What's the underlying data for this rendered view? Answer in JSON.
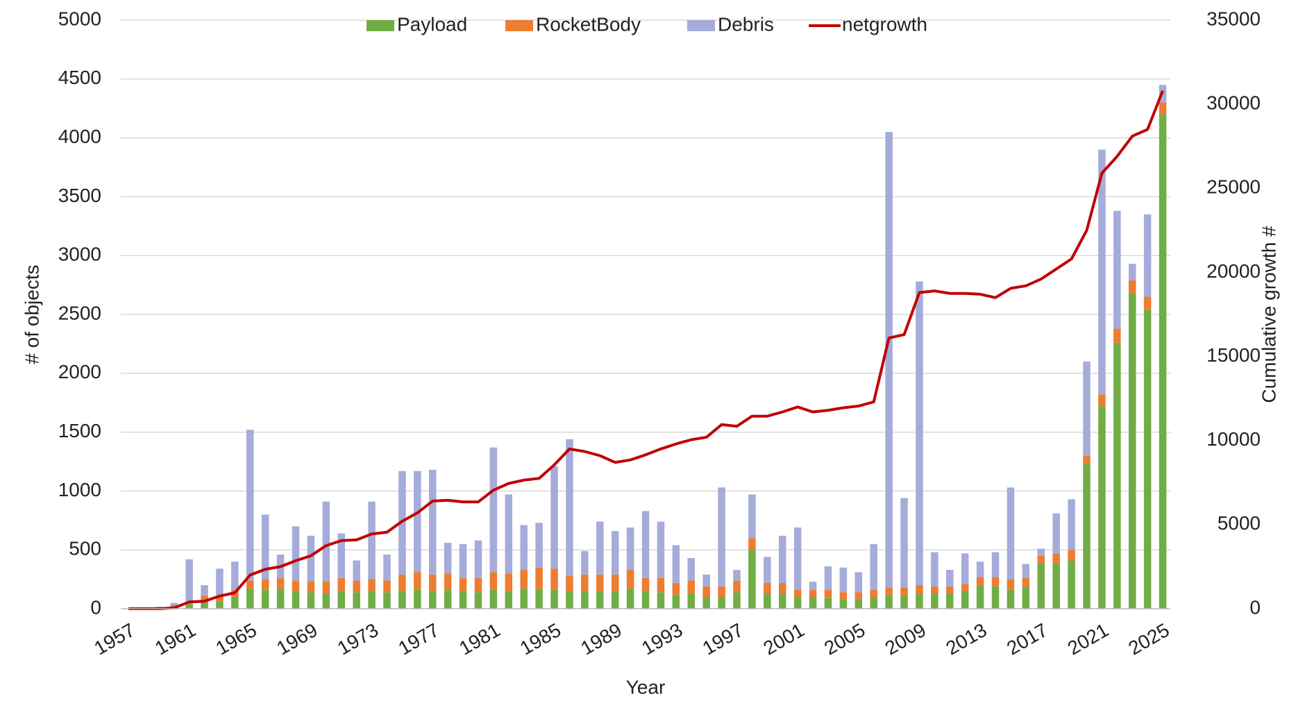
{
  "chart_data": {
    "type": "bar",
    "stacked": true,
    "xlabel": "Year",
    "ylabel": "# of objects",
    "y2label": "Cumulative growth #",
    "categories": [
      "1957",
      null,
      null,
      null,
      "1961",
      null,
      null,
      null,
      "1965",
      null,
      null,
      null,
      "1969",
      null,
      null,
      null,
      "1973",
      null,
      null,
      null,
      "1977",
      null,
      null,
      null,
      "1981",
      null,
      null,
      null,
      "1985",
      null,
      null,
      null,
      "1989",
      null,
      null,
      null,
      "1993",
      null,
      null,
      null,
      "1997",
      null,
      null,
      null,
      "2001",
      null,
      null,
      null,
      "2005",
      null,
      null,
      null,
      "2009",
      null,
      null,
      null,
      "2013",
      null,
      null,
      null,
      "2017",
      null,
      null,
      null,
      "2021",
      null,
      null,
      null,
      "2025"
    ],
    "series": [
      {
        "name": "Payload",
        "color": "#70ad47",
        "values": [
          2,
          5,
          10,
          20,
          40,
          70,
          60,
          100,
          170,
          160,
          170,
          150,
          140,
          130,
          150,
          140,
          150,
          140,
          150,
          160,
          150,
          160,
          150,
          140,
          160,
          150,
          170,
          170,
          160,
          150,
          150,
          150,
          150,
          170,
          150,
          140,
          120,
          130,
          100,
          100,
          140,
          500,
          130,
          130,
          100,
          100,
          90,
          80,
          80,
          100,
          120,
          110,
          130,
          130,
          130,
          150,
          200,
          190,
          160,
          190,
          390,
          380,
          410,
          1230,
          1720,
          2260,
          2680,
          2540,
          4200
        ]
      },
      {
        "name": "RocketBody",
        "color": "#ed7d31",
        "values": [
          1,
          2,
          3,
          10,
          20,
          40,
          40,
          60,
          70,
          90,
          90,
          90,
          90,
          100,
          110,
          100,
          100,
          100,
          140,
          150,
          140,
          140,
          110,
          120,
          150,
          150,
          160,
          180,
          180,
          130,
          140,
          140,
          140,
          160,
          110,
          120,
          100,
          110,
          90,
          90,
          100,
          100,
          90,
          90,
          60,
          60,
          70,
          60,
          60,
          60,
          60,
          70,
          70,
          60,
          60,
          60,
          70,
          80,
          90,
          70,
          60,
          90,
          90,
          70,
          100,
          120,
          110,
          110,
          100
        ]
      },
      {
        "name": "Debris",
        "color": "#a5acd9",
        "values": [
          0,
          0,
          5,
          20,
          360,
          90,
          240,
          240,
          1280,
          550,
          200,
          460,
          390,
          680,
          380,
          170,
          660,
          220,
          880,
          860,
          890,
          260,
          290,
          320,
          1060,
          670,
          380,
          380,
          870,
          1160,
          200,
          450,
          370,
          360,
          570,
          480,
          320,
          190,
          100,
          840,
          90,
          370,
          220,
          400,
          530,
          70,
          200,
          210,
          170,
          390,
          3870,
          760,
          2580,
          290,
          140,
          260,
          130,
          210,
          780,
          120,
          60,
          340,
          430,
          800,
          2080,
          1000,
          140,
          700,
          150
        ]
      },
      {
        "name": "netgrowth",
        "color": "#c00000",
        "type": "line",
        "axis": "y2",
        "values": [
          0,
          0,
          0,
          50,
          400,
          450,
          750,
          950,
          2000,
          2350,
          2500,
          2850,
          3150,
          3750,
          4050,
          4100,
          4450,
          4550,
          5200,
          5700,
          6400,
          6450,
          6350,
          6350,
          7050,
          7450,
          7650,
          7750,
          8550,
          9500,
          9350,
          9100,
          8700,
          8850,
          9150,
          9500,
          9800,
          10050,
          10200,
          10950,
          10850,
          11450,
          11450,
          11700,
          12000,
          11700,
          11800,
          11950,
          12050,
          12300,
          16100,
          16300,
          18800,
          18900,
          18750,
          18750,
          18700,
          18500,
          19050,
          19200,
          19600,
          20200,
          20800,
          22500,
          25900,
          26900,
          28100,
          28500,
          30800
        ]
      }
    ],
    "ylim": [
      0,
      5000
    ],
    "yticks": [
      0,
      500,
      1000,
      1500,
      2000,
      2500,
      3000,
      3500,
      4000,
      4500,
      5000
    ],
    "y2lim": [
      0,
      35000
    ],
    "y2ticks": [
      0,
      5000,
      10000,
      15000,
      20000,
      25000,
      30000,
      35000
    ],
    "grid": true,
    "legend": "top"
  }
}
